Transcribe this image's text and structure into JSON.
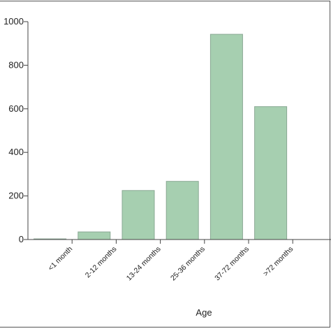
{
  "chart_data": {
    "type": "bar",
    "categories": [
      "<1 month",
      "2-12 months",
      "13-24 months",
      "25-36 months",
      "37-72 months",
      ">72 months"
    ],
    "values": [
      3,
      35,
      225,
      267,
      942,
      610
    ],
    "yticks": [
      0,
      200,
      400,
      600,
      800,
      1000
    ],
    "ylim": [
      0,
      1000
    ],
    "xlabel": "Age",
    "ylabel": "",
    "grid": false,
    "colors": {
      "bar_fill": "#a6cfb0",
      "bar_stroke": "#8aa894",
      "axis": "#444444"
    }
  }
}
